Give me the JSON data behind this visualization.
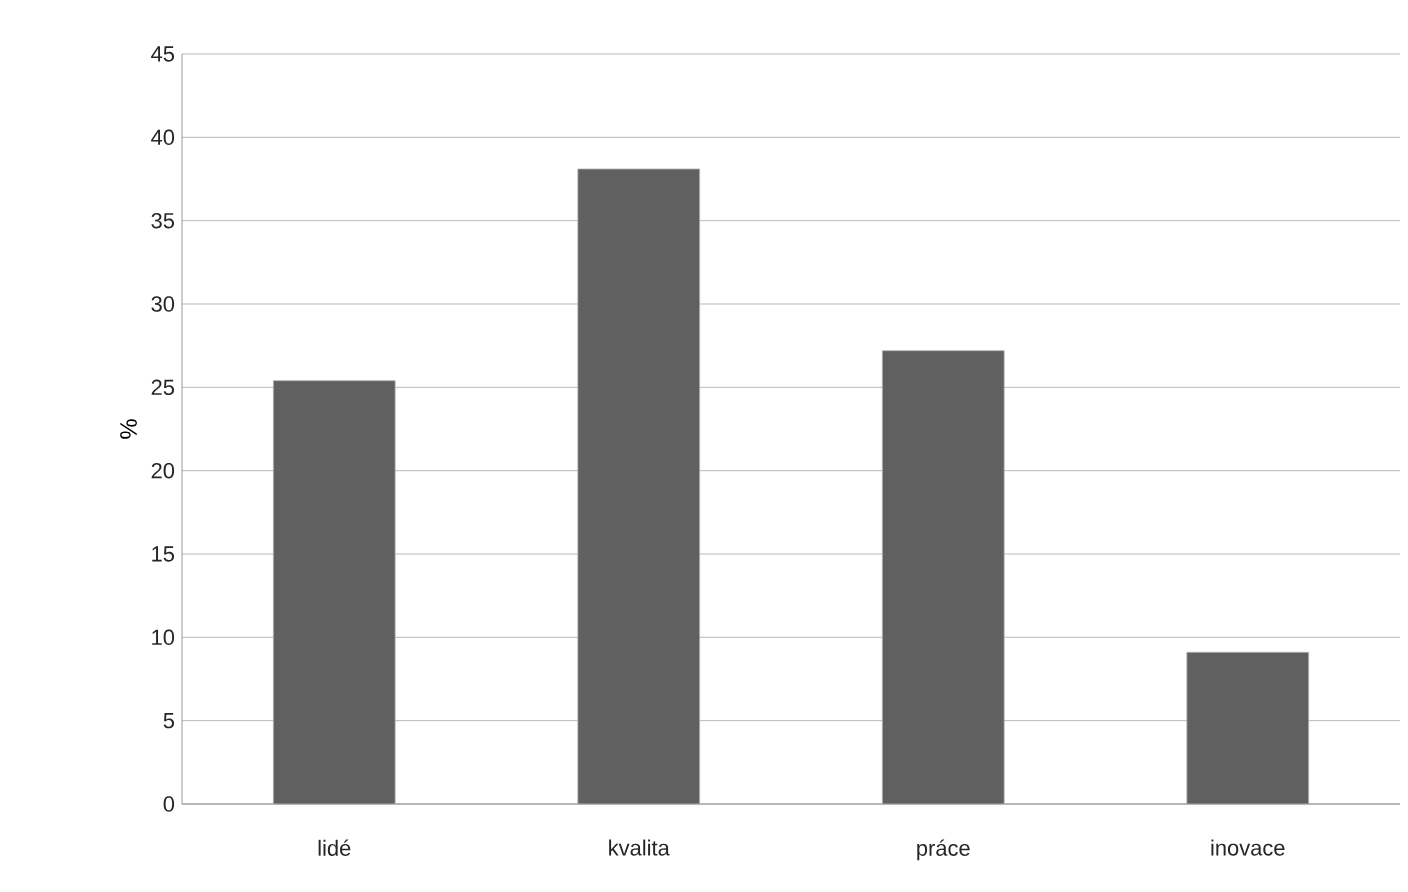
{
  "chart_data": {
    "type": "bar",
    "ylabel": "%",
    "categories": [
      "lidé",
      "kvalita",
      "práce",
      "inovace"
    ],
    "values": [
      25.4,
      38.1,
      27.2,
      9.1
    ],
    "color": "#606060",
    "ylim": [
      0,
      45
    ],
    "yticks": [
      0,
      5,
      10,
      15,
      20,
      25,
      30,
      35,
      40,
      45
    ],
    "grid": "y"
  }
}
